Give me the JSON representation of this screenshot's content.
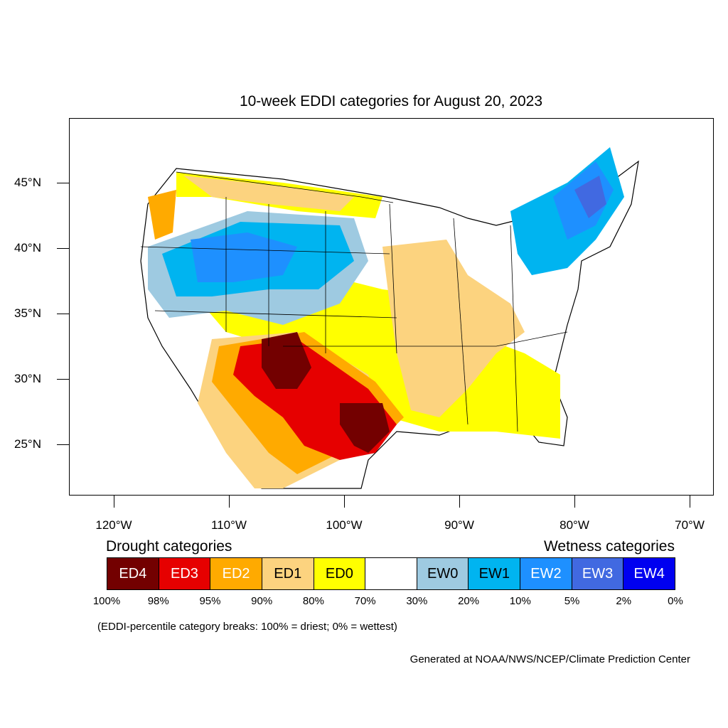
{
  "title": "10-week EDDI categories for August 20, 2023",
  "map": {
    "lat_labels": [
      "45°N",
      "40°N",
      "35°N",
      "30°N",
      "25°N"
    ],
    "lat_values": [
      45,
      40,
      35,
      30,
      25
    ],
    "lon_labels": [
      "120°W",
      "110°W",
      "100°W",
      "90°W",
      "80°W",
      "70°W"
    ],
    "lon_values": [
      -120,
      -110,
      -100,
      -90,
      -80,
      -70
    ]
  },
  "legend": {
    "drought_title": "Drought categories",
    "wetness_title": "Wetness categories",
    "categories": [
      {
        "label": "ED4",
        "color": "#730000",
        "text_color": "#ffffff"
      },
      {
        "label": "ED3",
        "color": "#e60000",
        "text_color": "#ffffff"
      },
      {
        "label": "ED2",
        "color": "#ffaa00",
        "text_color": "#ffffff"
      },
      {
        "label": "ED1",
        "color": "#fcd37f",
        "text_color": "#000000"
      },
      {
        "label": "ED0",
        "color": "#ffff00",
        "text_color": "#000000"
      },
      {
        "label": "",
        "color": "#ffffff",
        "text_color": "#000000"
      },
      {
        "label": "EW0",
        "color": "#9ecae1",
        "text_color": "#000000"
      },
      {
        "label": "EW1",
        "color": "#00b4f0",
        "text_color": "#000000"
      },
      {
        "label": "EW2",
        "color": "#1e90ff",
        "text_color": "#ffffff"
      },
      {
        "label": "EW3",
        "color": "#4169e1",
        "text_color": "#ffffff"
      },
      {
        "label": "EW4",
        "color": "#0000f0",
        "text_color": "#ffffff"
      }
    ],
    "percentiles": [
      "100%",
      "98%",
      "95%",
      "90%",
      "80%",
      "70%",
      "30%",
      "20%",
      "10%",
      "5%",
      "2%",
      "0%"
    ]
  },
  "note": "(EDDI-percentile category breaks: 100% = driest; 0% = wettest)",
  "credit": "Generated at NOAA/NWS/NCEP/Climate Prediction Center"
}
